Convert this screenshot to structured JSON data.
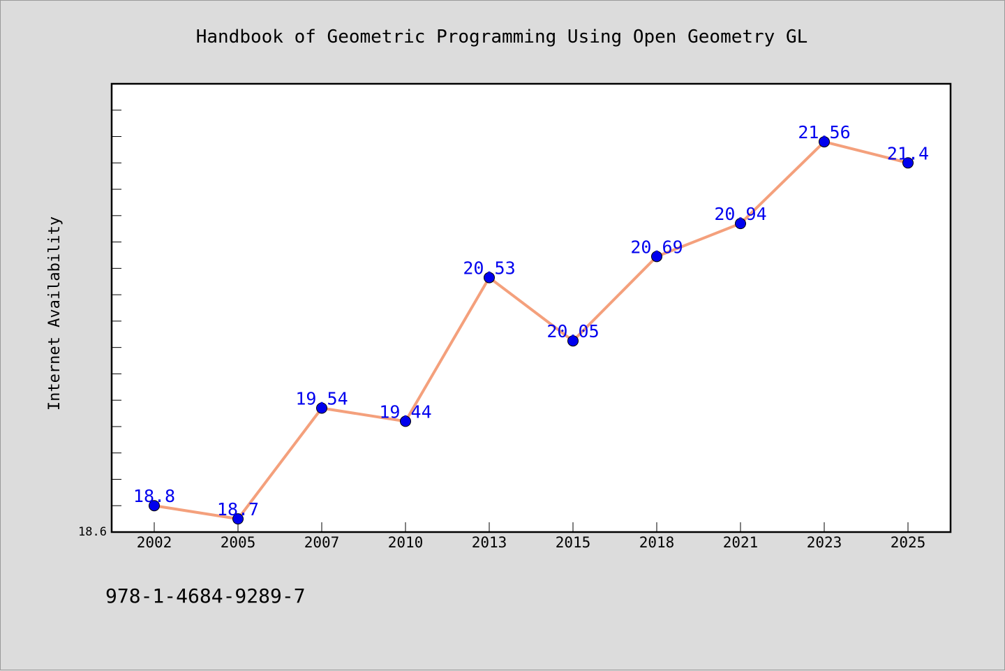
{
  "chart_data": {
    "type": "line",
    "title": "Handbook of Geometric Programming Using Open Geometry GL",
    "ylabel": "Internet Availability",
    "xlabel": "",
    "y_tick_label": "18.6",
    "ylim": [
      18.6,
      22.0
    ],
    "categories": [
      "2002",
      "2005",
      "2007",
      "2010",
      "2013",
      "2015",
      "2018",
      "2021",
      "2023",
      "2025"
    ],
    "series": [
      {
        "values": [
          18.8,
          18.7,
          19.54,
          19.44,
          20.53,
          20.05,
          20.69,
          20.94,
          21.56,
          21.4
        ],
        "labels": [
          "18.8",
          "18.7",
          "19.54",
          "19.44",
          "20.53",
          "20.05",
          "20.69",
          "20.94",
          "21.56",
          "21.4"
        ],
        "line_color": "#f4a07c",
        "marker_color": "#0000ee",
        "label_color": "#0000ee"
      }
    ],
    "grid": false,
    "legend": "none"
  },
  "footer": {
    "isbn": "978-1-4684-9289-7"
  }
}
